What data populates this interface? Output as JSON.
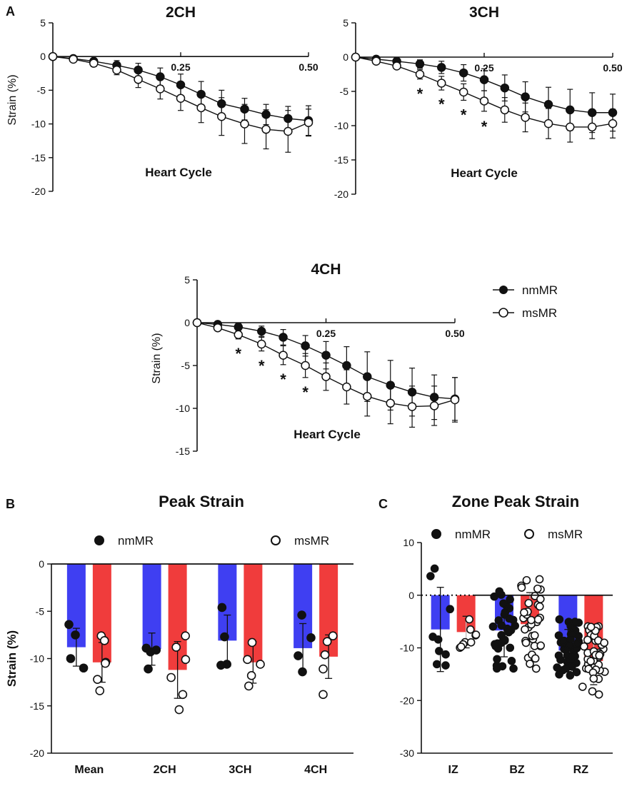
{
  "chart_data": [
    {
      "type": "line",
      "panel": "A",
      "title": "2CH",
      "xlabel": "Heart Cycle",
      "ylabel": "Strain (%)",
      "xlim": [
        0,
        0.5
      ],
      "ylim": [
        -20,
        5
      ],
      "xticks": [
        "0.25",
        "0.50"
      ],
      "yticks": [
        "5",
        "0",
        "-5",
        "-10",
        "-15",
        "-20"
      ],
      "x": [
        0,
        0.05,
        0.1,
        0.15,
        0.2,
        0.25,
        0.3,
        0.35,
        0.4,
        0.45,
        0.5
      ],
      "series": [
        {
          "name": "nmMR",
          "marker": "filled",
          "values": [
            0,
            -0.3,
            -0.7,
            -1.3,
            -2.0,
            -3.0,
            -4.2,
            -5.6,
            -7.0,
            -7.8,
            -8.6,
            -9.2,
            -9.5
          ],
          "x": [
            0,
            0.04,
            0.08,
            0.125,
            0.167,
            0.21,
            0.25,
            0.29,
            0.33,
            0.375,
            0.417,
            0.46,
            0.5
          ],
          "err": [
            0,
            0.2,
            0.4,
            0.7,
            1.0,
            1.3,
            1.6,
            1.9,
            2.0,
            1.6,
            1.5,
            1.8,
            2.2
          ]
        },
        {
          "name": "msMR",
          "marker": "open",
          "values": [
            0,
            -0.4,
            -1.0,
            -2.0,
            -3.4,
            -4.8,
            -6.2,
            -7.6,
            -8.9,
            -10.0,
            -10.8,
            -11.1,
            -9.8
          ],
          "x": [
            0,
            0.04,
            0.08,
            0.125,
            0.167,
            0.21,
            0.25,
            0.29,
            0.33,
            0.375,
            0.417,
            0.46,
            0.5
          ],
          "err": [
            0,
            0.2,
            0.5,
            0.7,
            1.2,
            1.5,
            1.8,
            2.2,
            2.8,
            2.9,
            2.9,
            3.1,
            2.0
          ]
        }
      ],
      "significance_markers": []
    },
    {
      "type": "line",
      "panel": "",
      "title": "3CH",
      "xlabel": "Heart Cycle",
      "ylabel": "",
      "xlim": [
        0,
        0.5
      ],
      "ylim": [
        -20,
        5
      ],
      "xticks": [
        "0.25",
        "0.50"
      ],
      "yticks": [
        "5",
        "0",
        "-5",
        "-10",
        "-15",
        "-20"
      ],
      "series": [
        {
          "name": "nmMR",
          "marker": "filled",
          "values": [
            0,
            -0.3,
            -0.6,
            -1.0,
            -1.5,
            -2.3,
            -3.3,
            -4.5,
            -5.8,
            -6.9,
            -7.7,
            -8.1,
            -8.1
          ],
          "x": [
            0,
            0.04,
            0.08,
            0.125,
            0.167,
            0.21,
            0.25,
            0.29,
            0.33,
            0.375,
            0.417,
            0.46,
            0.5
          ],
          "err": [
            0,
            0.2,
            0.4,
            0.6,
            0.9,
            1.2,
            1.6,
            1.9,
            2.2,
            2.5,
            3.0,
            2.9,
            2.7
          ]
        },
        {
          "name": "msMR",
          "marker": "open",
          "values": [
            0,
            -0.6,
            -1.3,
            -2.5,
            -3.8,
            -5.1,
            -6.4,
            -7.7,
            -8.8,
            -9.7,
            -10.2,
            -10.2,
            -9.7
          ],
          "x": [
            0,
            0.04,
            0.08,
            0.125,
            0.167,
            0.21,
            0.25,
            0.29,
            0.33,
            0.375,
            0.417,
            0.46,
            0.5
          ],
          "err": [
            0,
            0.2,
            0.4,
            0.7,
            1.0,
            1.2,
            1.5,
            1.8,
            2.1,
            2.2,
            2.2,
            1.7,
            2.1
          ]
        }
      ],
      "significance_markers": [
        {
          "label": "*",
          "x": 0.125,
          "y": -5.3
        },
        {
          "label": "*",
          "x": 0.167,
          "y": -6.8
        },
        {
          "label": "*",
          "x": 0.21,
          "y": -8.4
        },
        {
          "label": "*",
          "x": 0.25,
          "y": -10.1
        }
      ]
    },
    {
      "type": "line",
      "panel": "",
      "title": "4CH",
      "xlabel": "Heart Cycle",
      "ylabel": "Strain (%)",
      "xlim": [
        0,
        0.5
      ],
      "ylim": [
        -15,
        5
      ],
      "xticks": [
        "0.25",
        "0.50"
      ],
      "yticks": [
        "5",
        "0",
        "-5",
        "-10",
        "-15"
      ],
      "series": [
        {
          "name": "nmMR",
          "marker": "filled",
          "values": [
            0,
            -0.2,
            -0.5,
            -1.0,
            -1.7,
            -2.7,
            -3.8,
            -5.0,
            -6.3,
            -7.3,
            -8.1,
            -8.7,
            -8.9
          ],
          "x": [
            0,
            0.04,
            0.08,
            0.125,
            0.167,
            0.21,
            0.25,
            0.29,
            0.33,
            0.375,
            0.417,
            0.46,
            0.5
          ],
          "err": [
            0,
            0.2,
            0.4,
            0.6,
            0.9,
            1.2,
            1.6,
            2.2,
            2.9,
            2.9,
            2.8,
            2.6,
            2.5
          ]
        },
        {
          "name": "msMR",
          "marker": "open",
          "values": [
            0,
            -0.6,
            -1.4,
            -2.5,
            -3.8,
            -5.0,
            -6.3,
            -7.5,
            -8.6,
            -9.4,
            -9.8,
            -9.7,
            -9.0
          ],
          "x": [
            0,
            0.04,
            0.08,
            0.125,
            0.167,
            0.21,
            0.25,
            0.29,
            0.33,
            0.375,
            0.417,
            0.46,
            0.5
          ],
          "err": [
            0,
            0.3,
            0.5,
            0.8,
            1.1,
            1.4,
            1.6,
            2.0,
            2.3,
            2.4,
            2.4,
            2.3,
            2.6
          ]
        }
      ],
      "significance_markers": [
        {
          "label": "*",
          "x": 0.08,
          "y": -3.6
        },
        {
          "label": "*",
          "x": 0.125,
          "y": -5.0
        },
        {
          "label": "*",
          "x": 0.167,
          "y": -6.6
        },
        {
          "label": "*",
          "x": 0.21,
          "y": -8.1
        }
      ]
    },
    {
      "type": "bar",
      "panel": "B",
      "title": "Peak Strain",
      "xlabel": "",
      "ylabel": "Strain (%)",
      "ylim": [
        -20,
        0
      ],
      "yticks": [
        "0",
        "-5",
        "-10",
        "-15",
        "-20"
      ],
      "categories": [
        "Mean",
        "2CH",
        "3CH",
        "4CH"
      ],
      "series": [
        {
          "name": "nmMR",
          "color": "#3f3ff2",
          "values": [
            -8.8,
            -9.0,
            -8.1,
            -8.9
          ],
          "sd": [
            2.0,
            1.7,
            2.7,
            2.6
          ],
          "points": [
            [
              -6.4,
              -7.5,
              -10.0,
              -11.0
            ],
            [
              -8.9,
              -9.1,
              -9.3,
              -11.1
            ],
            [
              -4.6,
              -7.7,
              -10.6,
              -10.7
            ],
            [
              -5.4,
              -7.8,
              -9.7,
              -11.4
            ]
          ]
        },
        {
          "name": "msMR",
          "color": "#f03c3c",
          "values": [
            -10.4,
            -11.2,
            -10.4,
            -9.8
          ],
          "sd": [
            2.1,
            3.0,
            2.2,
            2.3
          ],
          "points": [
            [
              -7.6,
              -8.1,
              -10.4,
              -10.5,
              -12.2,
              -13.4
            ],
            [
              -7.6,
              -8.8,
              -10.1,
              -12.0,
              -13.8,
              -15.4
            ],
            [
              -8.3,
              -10.1,
              -10.6,
              -11.8,
              -12.9
            ],
            [
              -7.6,
              -8.2,
              -9.6,
              -11.1,
              -13.8
            ]
          ]
        }
      ],
      "legend": [
        "nmMR",
        "msMR"
      ]
    },
    {
      "type": "bar",
      "panel": "C",
      "title": "Zone Peak Strain",
      "xlabel": "",
      "ylabel": "",
      "ylim": [
        -30,
        10
      ],
      "yticks": [
        "10",
        "0",
        "-10",
        "-20",
        "-30"
      ],
      "categories": [
        "IZ",
        "BZ",
        "RZ"
      ],
      "series": [
        {
          "name": "nmMR",
          "color": "#3f3ff2",
          "values": [
            -6.5,
            -6.7,
            -10.5
          ],
          "sd": [
            8.0,
            5.0,
            4.0
          ]
        },
        {
          "name": "msMR",
          "color": "#f03c3c",
          "values": [
            -7.0,
            -5.5,
            -12.5
          ],
          "sd": [
            3.0,
            6.0,
            4.5
          ]
        }
      ],
      "legend": [
        "nmMR",
        "msMR"
      ]
    }
  ],
  "legend_a": {
    "items": [
      "nmMR",
      "msMR"
    ]
  },
  "labels": {
    "panel_a": "A",
    "panel_b": "B",
    "panel_c": "C"
  }
}
